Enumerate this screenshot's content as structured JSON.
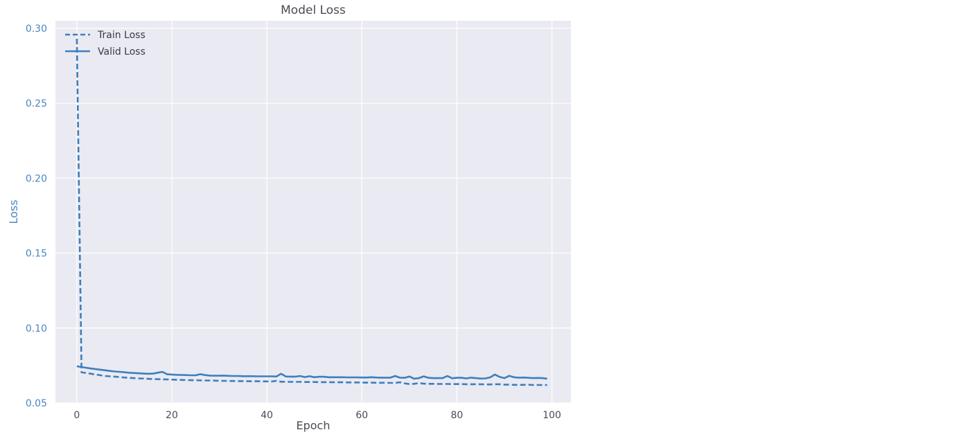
{
  "chart_data": {
    "type": "line",
    "title": "Model Loss",
    "xlabel": "Epoch",
    "ylabel": "Loss",
    "xlim": [
      -4.5,
      104
    ],
    "ylim": [
      0.05,
      0.305
    ],
    "xticks": [
      0,
      20,
      40,
      60,
      80,
      100
    ],
    "yticks": [
      0.05,
      0.1,
      0.15,
      0.2,
      0.25,
      0.3
    ],
    "ytick_labels": [
      "0.05",
      "0.10",
      "0.15",
      "0.20",
      "0.25",
      "0.30"
    ],
    "grid": true,
    "legend_position": "top-left",
    "background_color": "#eaeaf2",
    "line_color": "#3c7fbd",
    "series": [
      {
        "name": "Train Loss",
        "style": "dashed",
        "x": [
          0,
          1,
          2,
          3,
          4,
          5,
          6,
          7,
          8,
          9,
          10,
          11,
          12,
          13,
          14,
          15,
          16,
          17,
          18,
          19,
          20,
          21,
          22,
          23,
          24,
          25,
          26,
          27,
          28,
          29,
          30,
          31,
          32,
          33,
          34,
          35,
          36,
          37,
          38,
          39,
          40,
          41,
          42,
          43,
          44,
          45,
          46,
          47,
          48,
          49,
          50,
          51,
          52,
          53,
          54,
          55,
          56,
          57,
          58,
          59,
          60,
          61,
          62,
          63,
          64,
          65,
          66,
          67,
          68,
          69,
          70,
          71,
          72,
          73,
          74,
          75,
          76,
          77,
          78,
          79,
          80,
          81,
          82,
          83,
          84,
          85,
          86,
          87,
          88,
          89,
          90,
          91,
          92,
          93,
          94,
          95,
          96,
          97,
          98,
          99
        ],
        "values": [
          0.293,
          0.0705,
          0.07,
          0.0695,
          0.069,
          0.0685,
          0.068,
          0.0678,
          0.0676,
          0.0673,
          0.067,
          0.0668,
          0.0666,
          0.0664,
          0.0663,
          0.0661,
          0.066,
          0.0659,
          0.0658,
          0.0657,
          0.0656,
          0.0655,
          0.0654,
          0.0653,
          0.0652,
          0.0652,
          0.0651,
          0.065,
          0.065,
          0.0649,
          0.0648,
          0.0648,
          0.0647,
          0.0647,
          0.0646,
          0.0646,
          0.0645,
          0.0645,
          0.0645,
          0.0644,
          0.0644,
          0.0643,
          0.0648,
          0.0642,
          0.0642,
          0.0641,
          0.0641,
          0.0641,
          0.064,
          0.064,
          0.064,
          0.0639,
          0.0639,
          0.0639,
          0.0638,
          0.0638,
          0.0638,
          0.0637,
          0.0637,
          0.0637,
          0.0636,
          0.0636,
          0.0636,
          0.0635,
          0.0635,
          0.0635,
          0.0634,
          0.0634,
          0.0638,
          0.0631,
          0.0626,
          0.0628,
          0.0633,
          0.0629,
          0.0628,
          0.0628,
          0.0627,
          0.0627,
          0.0627,
          0.0626,
          0.0626,
          0.0626,
          0.0625,
          0.0625,
          0.0625,
          0.0625,
          0.0624,
          0.0624,
          0.0625,
          0.0625,
          0.0622,
          0.0623,
          0.0621,
          0.0621,
          0.0621,
          0.0622,
          0.062,
          0.062,
          0.062,
          0.062
        ]
      },
      {
        "name": "Valid Loss",
        "style": "solid",
        "x": [
          0,
          1,
          2,
          3,
          4,
          5,
          6,
          7,
          8,
          9,
          10,
          11,
          12,
          13,
          14,
          15,
          16,
          17,
          18,
          19,
          20,
          21,
          22,
          23,
          24,
          25,
          26,
          27,
          28,
          29,
          30,
          31,
          32,
          33,
          34,
          35,
          36,
          37,
          38,
          39,
          40,
          41,
          42,
          43,
          44,
          45,
          46,
          47,
          48,
          49,
          50,
          51,
          52,
          53,
          54,
          55,
          56,
          57,
          58,
          59,
          60,
          61,
          62,
          63,
          64,
          65,
          66,
          67,
          68,
          69,
          70,
          71,
          72,
          73,
          74,
          75,
          76,
          77,
          78,
          79,
          80,
          81,
          82,
          83,
          84,
          85,
          86,
          87,
          88,
          89,
          90,
          91,
          92,
          93,
          94,
          95,
          96,
          97,
          98,
          99
        ],
        "values": [
          0.0745,
          0.074,
          0.0735,
          0.073,
          0.0726,
          0.0722,
          0.0718,
          0.0714,
          0.071,
          0.0708,
          0.0705,
          0.0702,
          0.07,
          0.0698,
          0.0697,
          0.0695,
          0.0696,
          0.0702,
          0.0708,
          0.0692,
          0.069,
          0.0688,
          0.0687,
          0.0686,
          0.0685,
          0.0685,
          0.0692,
          0.0686,
          0.0683,
          0.0682,
          0.0682,
          0.0683,
          0.0681,
          0.068,
          0.068,
          0.0679,
          0.0679,
          0.0679,
          0.0678,
          0.0678,
          0.0678,
          0.0678,
          0.0677,
          0.0695,
          0.0677,
          0.0676,
          0.0676,
          0.068,
          0.0673,
          0.0679,
          0.0672,
          0.0675,
          0.0675,
          0.0672,
          0.0672,
          0.0672,
          0.0672,
          0.0671,
          0.0671,
          0.0671,
          0.067,
          0.067,
          0.0672,
          0.067,
          0.0669,
          0.0669,
          0.0669,
          0.068,
          0.0669,
          0.0668,
          0.0677,
          0.0662,
          0.0666,
          0.0678,
          0.0668,
          0.0666,
          0.0666,
          0.0666,
          0.068,
          0.0665,
          0.0668,
          0.0668,
          0.0664,
          0.0669,
          0.0666,
          0.0663,
          0.0664,
          0.0671,
          0.069,
          0.0674,
          0.0666,
          0.0681,
          0.0672,
          0.0669,
          0.067,
          0.0668,
          0.0666,
          0.0667,
          0.0666,
          0.0662
        ]
      }
    ]
  }
}
